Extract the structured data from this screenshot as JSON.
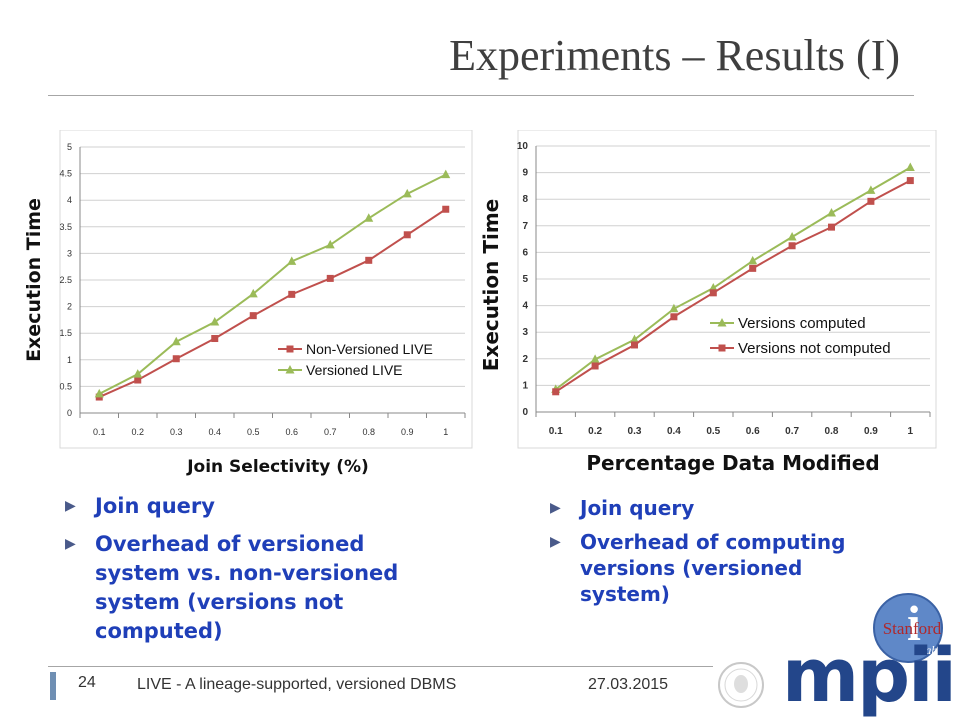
{
  "slide": {
    "title": "Experiments – Results (I)",
    "page_number": "24",
    "footer_text": "LIVE - A lineage-supported, versioned DBMS",
    "footer_date": "27.03.2015",
    "accent_color": "#1f3fb8"
  },
  "left_bullets": [
    "Join query",
    "Overhead of versioned system vs. non-versioned system (versions not computed)"
  ],
  "right_bullets": [
    "Join query",
    "Overhead of computing versions (versioned system)"
  ],
  "logos": {
    "stanford_text": "Stanford",
    "stanford_letter": "i",
    "stanford_lab": "Lab",
    "mpii_text": "mpii"
  },
  "chart_data": [
    {
      "type": "line",
      "xlabel": "Join Selectivity (%)",
      "ylabel": "Execution Time",
      "x": [
        "0.1",
        "0.2",
        "0.3",
        "0.4",
        "0.5",
        "0.6",
        "0.7",
        "0.8",
        "0.9",
        "1"
      ],
      "ylim": [
        0,
        5
      ],
      "yticks": [
        "0",
        "0.5",
        "1",
        "1.5",
        "2",
        "2.5",
        "3",
        "3.5",
        "4",
        "4.5",
        "5"
      ],
      "grid": true,
      "legend_position": "bottom-right",
      "series": [
        {
          "name": "Non-Versioned LIVE",
          "color": "#c0504d",
          "marker": "square",
          "values": [
            0.3,
            0.62,
            1.02,
            1.4,
            1.83,
            2.23,
            2.53,
            2.87,
            3.35,
            3.83
          ]
        },
        {
          "name": "Versioned LIVE",
          "color": "#9bbb59",
          "marker": "triangle",
          "values": [
            0.36,
            0.73,
            1.34,
            1.71,
            2.24,
            2.85,
            3.16,
            3.66,
            4.12,
            4.48
          ]
        }
      ]
    },
    {
      "type": "line",
      "xlabel": "Percentage Data Modified",
      "ylabel": "Execution Time",
      "x": [
        "0.1",
        "0.2",
        "0.3",
        "0.4",
        "0.5",
        "0.6",
        "0.7",
        "0.8",
        "0.9",
        "1"
      ],
      "ylim": [
        0,
        10
      ],
      "yticks": [
        "0",
        "1",
        "2",
        "3",
        "4",
        "5",
        "6",
        "7",
        "8",
        "9",
        "10"
      ],
      "grid": true,
      "legend_position": "bottom-right",
      "series": [
        {
          "name": "Versions computed",
          "color": "#9bbb59",
          "marker": "triangle",
          "values": [
            0.85,
            1.98,
            2.72,
            3.88,
            4.66,
            5.68,
            6.58,
            7.48,
            8.33,
            9.19
          ]
        },
        {
          "name": "Versions not computed",
          "color": "#c0504d",
          "marker": "square",
          "values": [
            0.76,
            1.73,
            2.52,
            3.58,
            4.48,
            5.4,
            6.25,
            6.95,
            7.92,
            8.7
          ]
        }
      ]
    }
  ]
}
